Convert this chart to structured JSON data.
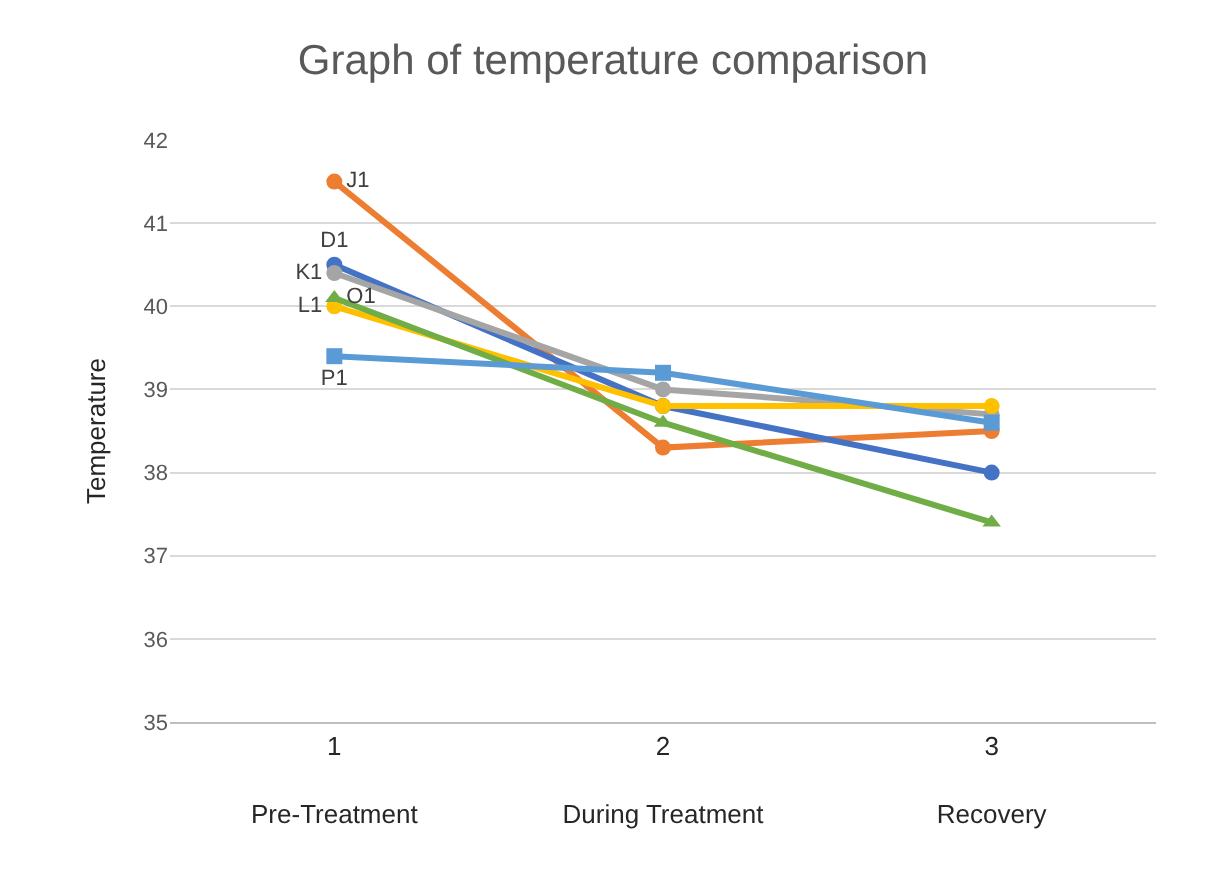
{
  "chart_data": {
    "type": "line",
    "title": "Graph of temperature comparison",
    "ylabel": "Temperature",
    "categories": [
      "1\nPre-Treatment",
      "2\nDuring Treatment",
      "3\nRecovery"
    ],
    "ylim": [
      35,
      42
    ],
    "yticks": [
      35,
      36,
      37,
      38,
      39,
      40,
      41,
      42
    ],
    "grid": "y",
    "legend": false,
    "line_style": "solid",
    "series": [
      {
        "name": "J1",
        "color": "#ed7d31",
        "marker": "circle",
        "values": [
          41.5,
          38.3,
          38.5
        ]
      },
      {
        "name": "D1",
        "color": "#4472c4",
        "marker": "circle",
        "values": [
          40.5,
          38.8,
          38.0
        ]
      },
      {
        "name": "K1",
        "color": "#a5a5a5",
        "marker": "circle",
        "values": [
          40.4,
          39.0,
          38.7
        ]
      },
      {
        "name": "L1",
        "color": "#ffc000",
        "marker": "circle",
        "values": [
          40.0,
          38.8,
          38.8
        ]
      },
      {
        "name": "O1",
        "color": "#70ad47",
        "marker": "triangle",
        "values": [
          40.1,
          38.6,
          37.4
        ]
      },
      {
        "name": "P1",
        "color": "#5b9bd5",
        "marker": "square",
        "values": [
          39.4,
          39.2,
          38.6
        ]
      }
    ]
  }
}
